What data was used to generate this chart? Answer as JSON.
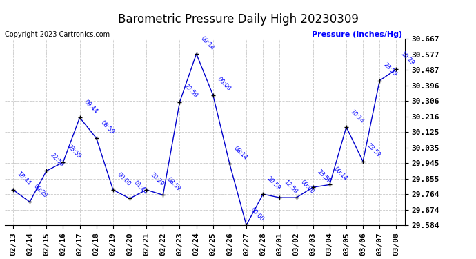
{
  "title": "Barometric Pressure Daily High 20230309",
  "ylabel": "Pressure (Inches/Hg)",
  "copyright": "Copyright 2023 Cartronics.com",
  "x_labels": [
    "02/13",
    "02/14",
    "02/15",
    "02/16",
    "02/17",
    "02/18",
    "02/19",
    "02/20",
    "02/21",
    "02/22",
    "02/23",
    "02/24",
    "02/25",
    "02/26",
    "02/27",
    "02/28",
    "03/01",
    "03/02",
    "03/03",
    "03/04",
    "03/05",
    "03/06",
    "03/07",
    "03/08"
  ],
  "y_values": [
    29.79,
    29.72,
    29.9,
    29.95,
    30.21,
    30.09,
    29.79,
    29.74,
    29.79,
    29.76,
    30.3,
    30.58,
    30.34,
    29.94,
    29.585,
    29.765,
    29.745,
    29.745,
    29.805,
    29.82,
    30.155,
    29.955,
    30.425,
    30.49
  ],
  "time_labels": [
    "18:44",
    "00:29",
    "22:59",
    "23:59",
    "09:44",
    "08:59",
    "00:00",
    "01:44",
    "20:29",
    "08:59",
    "23:59",
    "09:14",
    "00:00",
    "08:14",
    "00:00",
    "20:59",
    "12:59",
    "00:00",
    "23:59",
    "00:14",
    "10:14",
    "23:59",
    "23:59",
    "10:29"
  ],
  "ylim": [
    29.584,
    30.667
  ],
  "yticks": [
    29.584,
    29.674,
    29.764,
    29.855,
    29.945,
    30.035,
    30.125,
    30.216,
    30.306,
    30.396,
    30.487,
    30.577,
    30.667
  ],
  "line_color": "#0000cc",
  "marker_color": "#000000",
  "label_color": "#0000ff",
  "grid_color": "#bbbbbb",
  "background_color": "#ffffff",
  "title_fontsize": 12,
  "label_fontsize": 8,
  "tick_fontsize": 8,
  "ylabel_color": "#0000ff",
  "copyright_color": "#000000",
  "copyright_fontsize": 7
}
